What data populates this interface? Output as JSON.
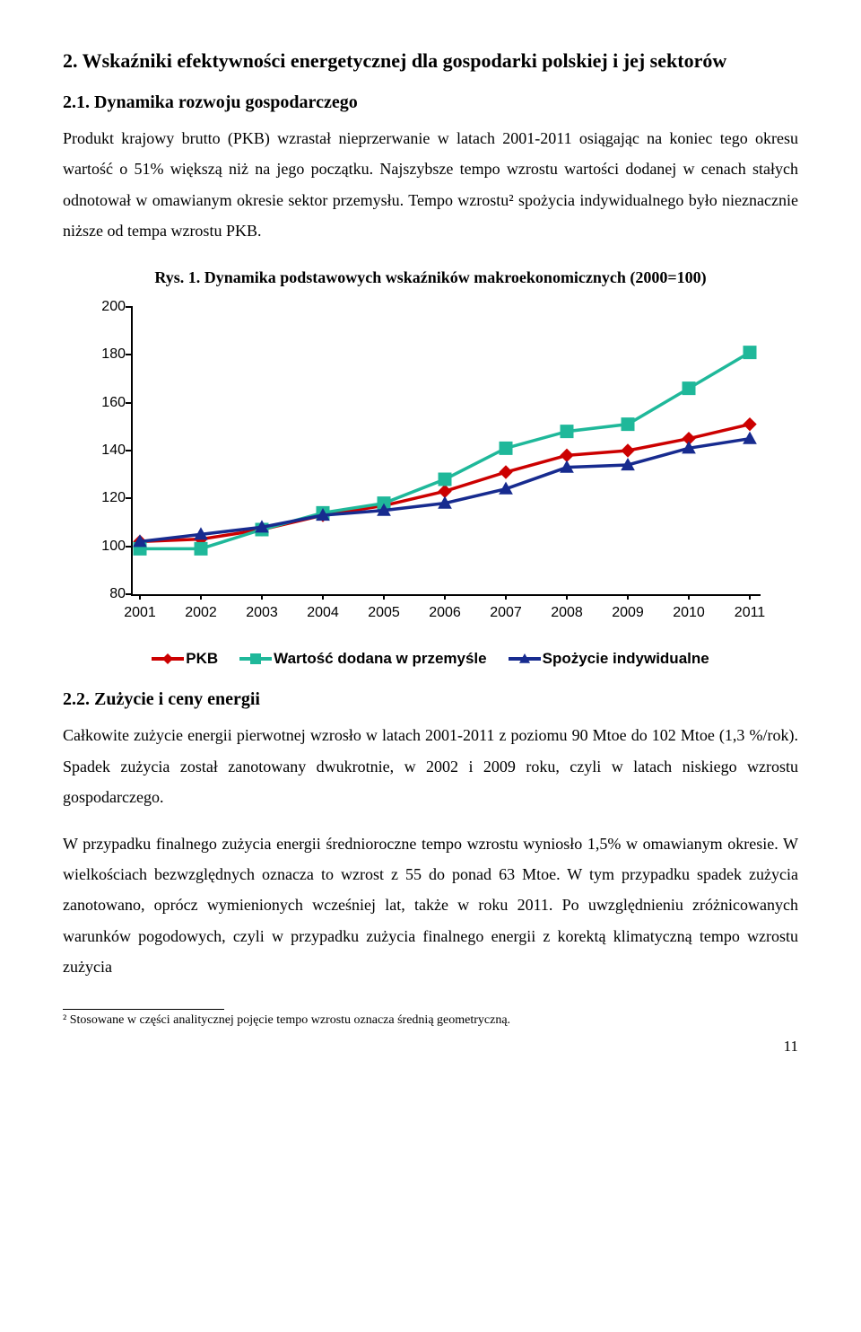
{
  "heading1": "2. Wskaźniki efektywności energetycznej dla gospodarki polskiej i jej sektorów",
  "heading2": "2.1. Dynamika rozwoju gospodarczego",
  "para1": "Produkt krajowy brutto (PKB) wzrastał nieprzerwanie w latach 2001-2011 osiągając na koniec tego okresu wartość o 51% większą niż na jego początku. Najszybsze tempo wzrostu wartości dodanej w cenach stałych odnotował w omawianym okresie sektor przemysłu. Tempo wzrostu² spożycia indywidualnego było nieznacznie niższe od tempa wzrostu PKB.",
  "fig_caption": "Rys. 1. Dynamika podstawowych wskaźników makroekonomicznych (2000=100)",
  "chart": {
    "type": "line",
    "ymin": 80,
    "ymax": 200,
    "ytick_step": 20,
    "x_labels": [
      "2001",
      "2002",
      "2003",
      "2004",
      "2005",
      "2006",
      "2007",
      "2008",
      "2009",
      "2010",
      "2011"
    ],
    "series": [
      {
        "name": "PKB",
        "color": "#cc0000",
        "marker": "diamond",
        "values": [
          102,
          103,
          107,
          113,
          117,
          123,
          131,
          138,
          140,
          145,
          151
        ]
      },
      {
        "name": "Wartość dodana w przemyśle",
        "color": "#1fb89a",
        "marker": "square",
        "values": [
          99,
          99,
          107,
          114,
          118,
          128,
          141,
          148,
          151,
          166,
          181
        ]
      },
      {
        "name": "Spożycie indywidualne",
        "color": "#172b8f",
        "marker": "triangle",
        "values": [
          102,
          105,
          108,
          113,
          115,
          118,
          124,
          133,
          134,
          141,
          145
        ]
      }
    ],
    "line_width": 3.5,
    "marker_size": 7
  },
  "legend": {
    "items": [
      "PKB",
      "Wartość dodana w przemyśle",
      "Spożycie indywidualne"
    ]
  },
  "heading3": "2.2. Zużycie i ceny energii",
  "para2": "Całkowite zużycie energii pierwotnej wzrosło w latach 2001-2011 z poziomu 90 Mtoe do 102 Mtoe (1,3 %/rok). Spadek zużycia został zanotowany dwukrotnie, w 2002 i 2009 roku, czyli w latach niskiego wzrostu gospodarczego.",
  "para3": "W przypadku finalnego zużycia energii średnioroczne tempo wzrostu wyniosło 1,5% w omawianym okresie. W wielkościach bezwzględnych oznacza to wzrost z 55 do ponad 63 Mtoe. W tym przypadku spadek zużycia zanotowano, oprócz wymienionych wcześniej lat, także w roku 2011. Po uwzględnieniu zróżnicowanych warunków pogodowych, czyli w przypadku zużycia finalnego energii z korektą klimatyczną tempo wzrostu zużycia",
  "footnote": "² Stosowane w części analitycznej pojęcie tempo wzrostu oznacza średnią geometryczną.",
  "pagenum": "11"
}
